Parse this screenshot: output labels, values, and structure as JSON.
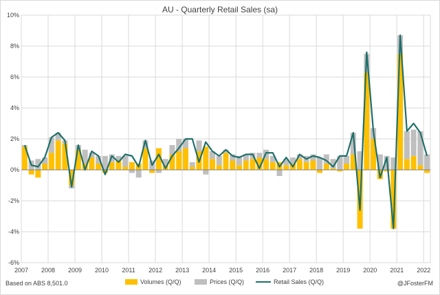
{
  "title": "AU - Quarterly Retail Sales (sa)",
  "source_note": "Based on ABS 8,501.0",
  "credit": "@JFosterFM",
  "legend": {
    "volumes": "Volumes (Q/Q)",
    "prices": "Prices (Q/Q)",
    "retail": "Retail Sales (Q/Q)"
  },
  "colors": {
    "volumes": "#FFC000",
    "prices": "#BFBFBF",
    "retail": "#1F6F6A",
    "grid": "#D9D9D9",
    "text": "#404040"
  },
  "chart_data": {
    "type": "bar",
    "stacked": true,
    "title": "AU - Quarterly Retail Sales (sa)",
    "ylim": [
      -6,
      10
    ],
    "yticks": [
      -6,
      -4,
      -2,
      0,
      2,
      4,
      6,
      8,
      10
    ],
    "ytick_labels": [
      "-6%",
      "-4%",
      "-2%",
      "0%",
      "2%",
      "4%",
      "6%",
      "8%",
      "10%"
    ],
    "year_labels": [
      "2007",
      "2008",
      "2009",
      "2010",
      "2011",
      "2012",
      "2013",
      "2014",
      "2015",
      "2016",
      "2017",
      "2018",
      "2019",
      "2020",
      "2021",
      "2022"
    ],
    "grid": true,
    "legend_position": "bottom",
    "categories": [
      "2007Q1",
      "2007Q2",
      "2007Q3",
      "2007Q4",
      "2008Q1",
      "2008Q2",
      "2008Q3",
      "2008Q4",
      "2009Q1",
      "2009Q2",
      "2009Q3",
      "2009Q4",
      "2010Q1",
      "2010Q2",
      "2010Q3",
      "2010Q4",
      "2011Q1",
      "2011Q2",
      "2011Q3",
      "2011Q4",
      "2012Q1",
      "2012Q2",
      "2012Q3",
      "2012Q4",
      "2013Q1",
      "2013Q2",
      "2013Q3",
      "2013Q4",
      "2014Q1",
      "2014Q2",
      "2014Q3",
      "2014Q4",
      "2015Q1",
      "2015Q2",
      "2015Q3",
      "2015Q4",
      "2016Q1",
      "2016Q2",
      "2016Q3",
      "2016Q4",
      "2017Q1",
      "2017Q2",
      "2017Q3",
      "2017Q4",
      "2018Q1",
      "2018Q2",
      "2018Q3",
      "2018Q4",
      "2019Q1",
      "2019Q2",
      "2019Q3",
      "2019Q4",
      "2020Q1",
      "2020Q2",
      "2020Q3",
      "2020Q4",
      "2021Q1",
      "2021Q2",
      "2021Q3",
      "2021Q4",
      "2022Q1"
    ],
    "series": [
      {
        "name": "Volumes (Q/Q)",
        "kind": "bar",
        "values": [
          1.5,
          -0.3,
          -0.5,
          0.4,
          1.1,
          1.9,
          1.7,
          -1.0,
          1.3,
          0.4,
          0.8,
          0.4,
          -0.2,
          0.5,
          0.6,
          0.2,
          0.5,
          0.4,
          1.4,
          -0.2,
          1.4,
          0.3,
          1.0,
          1.2,
          1.4,
          0.2,
          1.2,
          1.5,
          0.7,
          0.3,
          1.1,
          0.6,
          0.3,
          0.6,
          0.7,
          0.8,
          0.7,
          0.5,
          0.5,
          0.3,
          0.4,
          0.7,
          0.5,
          0.6,
          -0.2,
          0.4,
          0.1,
          -0.1,
          0.4,
          1.0,
          -3.8,
          6.3,
          2.0,
          -0.6,
          -0.1,
          -3.8,
          7.5,
          0.7,
          0.9,
          0.3,
          -0.2
        ]
      },
      {
        "name": "Prices (Q/Q)",
        "kind": "bar",
        "values": [
          0.1,
          0.6,
          0.7,
          0.4,
          1.0,
          0.5,
          0.2,
          -0.2,
          0.3,
          0.9,
          0.3,
          0.5,
          0.9,
          0.5,
          0.3,
          0.7,
          -0.2,
          -0.5,
          0.5,
          0.6,
          -0.2,
          0.4,
          0.6,
          0.8,
          0.6,
          0.3,
          0.7,
          -0.3,
          0.5,
          0.6,
          0.2,
          0.4,
          0.6,
          0.4,
          0.4,
          0.3,
          0.6,
          0.4,
          -0.4,
          0.4,
          0.4,
          0.3,
          0.4,
          0.4,
          0.8,
          0.6,
          0.6,
          0.9,
          0.5,
          1.4,
          1.2,
          1.2,
          0.7,
          1.0,
          0.9,
          0.8,
          1.2,
          1.8,
          1.7,
          2.2,
          1.0
        ]
      },
      {
        "name": "Retail Sales (Q/Q)",
        "kind": "line",
        "values": [
          1.6,
          0.3,
          0.2,
          0.8,
          2.1,
          2.4,
          1.9,
          -1.1,
          1.6,
          0.0,
          1.2,
          0.9,
          -0.3,
          0.9,
          0.5,
          1.0,
          0.9,
          0.2,
          1.9,
          0.3,
          1.0,
          0.1,
          0.9,
          1.4,
          2.0,
          2.0,
          0.5,
          1.8,
          1.2,
          0.9,
          1.3,
          0.9,
          0.8,
          1.0,
          1.0,
          0.1,
          1.1,
          1.1,
          0.2,
          0.8,
          0.2,
          1.0,
          0.7,
          0.9,
          0.8,
          0.6,
          0.2,
          0.9,
          0.9,
          2.4,
          -2.6,
          7.6,
          2.5,
          -0.5,
          0.8,
          -3.8,
          8.7,
          2.5,
          3.0,
          2.4,
          0.9
        ]
      }
    ]
  }
}
